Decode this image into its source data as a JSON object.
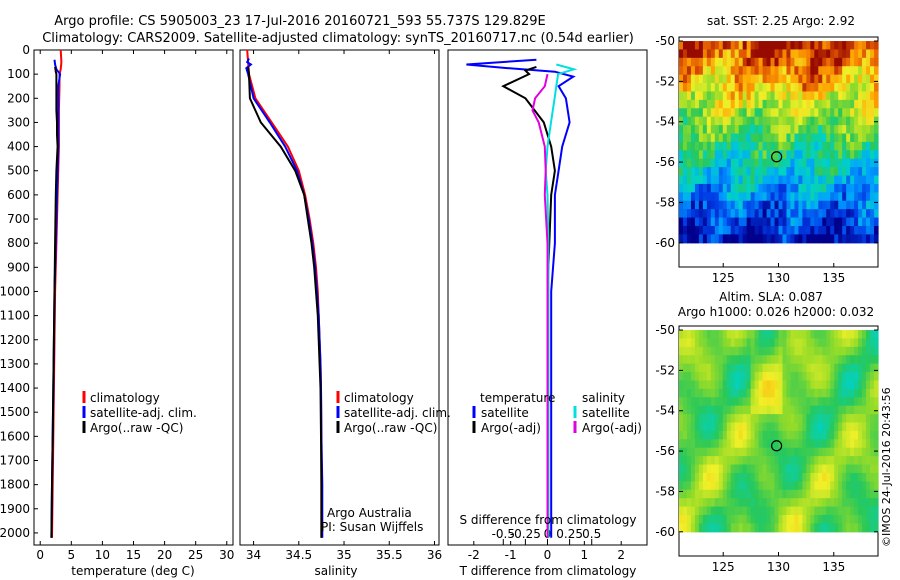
{
  "header": {
    "line1": "Argo profile: CS 5905003_23 17-Jul-2016 20160721_593 55.737S 129.829E",
    "line2": "Climatology: CARS2009. Satellite-adjusted climatology: synTS_20160717.nc (0.54d earlier)"
  },
  "credit": "Argo Australia",
  "pi": "PI: Susan Wijffels",
  "watermark": "©IMOS 24-Jul-2016 20:43:56",
  "colors": {
    "climatology": "#ff0000",
    "satellite": "#0000ff",
    "argo": "#000000",
    "salinity_satellite": "#00e0e0",
    "salinity_argo": "#e000e0"
  },
  "chart_data": [
    {
      "type": "line",
      "panel": "temperature",
      "xlabel": "temperature (deg C)",
      "ylim": [
        2050,
        0
      ],
      "xlim": [
        -1,
        31
      ],
      "xticks": [
        "0",
        "5",
        "10",
        "15",
        "20",
        "25",
        "30"
      ],
      "yticks": [
        "0",
        "100",
        "200",
        "300",
        "400",
        "500",
        "600",
        "700",
        "800",
        "900",
        "1000",
        "1100",
        "1200",
        "1300",
        "1400",
        "1500",
        "1600",
        "1700",
        "1800",
        "1900",
        "2000"
      ],
      "legend": [
        "climatology",
        "satellite-adj. clim.",
        "Argo(..raw -QC)"
      ],
      "series": [
        {
          "name": "climatology",
          "color": "#ff0000",
          "points": [
            [
              3.3,
              0
            ],
            [
              3.4,
              50
            ],
            [
              3.3,
              80
            ],
            [
              3.1,
              100
            ],
            [
              3.1,
              150
            ],
            [
              3.0,
              250
            ],
            [
              3.0,
              400
            ],
            [
              2.8,
              600
            ],
            [
              2.6,
              800
            ],
            [
              2.4,
              1000
            ],
            [
              2.3,
              1200
            ],
            [
              2.2,
              1400
            ],
            [
              2.1,
              1600
            ],
            [
              2.0,
              1800
            ],
            [
              1.9,
              2020
            ]
          ]
        },
        {
          "name": "satellite-adj. clim.",
          "color": "#0000ff",
          "points": [
            [
              2.3,
              40
            ],
            [
              2.4,
              60
            ],
            [
              2.6,
              80
            ],
            [
              3.2,
              100
            ],
            [
              2.9,
              150
            ],
            [
              2.9,
              250
            ],
            [
              2.9,
              400
            ],
            [
              2.7,
              600
            ],
            [
              2.5,
              800
            ],
            [
              2.3,
              1000
            ],
            [
              2.2,
              1200
            ],
            [
              2.1,
              1400
            ],
            [
              2.0,
              1600
            ],
            [
              1.9,
              1800
            ],
            [
              1.8,
              2020
            ]
          ]
        },
        {
          "name": "Argo(..raw -QC)",
          "color": "#000000",
          "points": [
            [
              2.4,
              70
            ],
            [
              2.5,
              90
            ],
            [
              2.6,
              100
            ],
            [
              2.6,
              150
            ],
            [
              2.6,
              200
            ],
            [
              2.6,
              250
            ],
            [
              2.7,
              300
            ],
            [
              2.7,
              350
            ],
            [
              2.8,
              400
            ],
            [
              2.6,
              500
            ],
            [
              2.5,
              600
            ],
            [
              2.4,
              800
            ],
            [
              2.3,
              1000
            ],
            [
              2.2,
              1200
            ],
            [
              2.1,
              1400
            ],
            [
              2.0,
              1600
            ],
            [
              1.9,
              1800
            ],
            [
              1.8,
              2020
            ]
          ]
        }
      ]
    },
    {
      "type": "line",
      "panel": "salinity",
      "xlabel": "salinity",
      "ylim": [
        2050,
        0
      ],
      "xlim": [
        33.85,
        36.05
      ],
      "xticks": [
        "34",
        "34.5",
        "35",
        "35.5",
        "36"
      ],
      "legend": [
        "climatology",
        "satellite-adj. clim.",
        "Argo(..raw -QC)"
      ],
      "series": [
        {
          "name": "climatology",
          "color": "#ff0000",
          "points": [
            [
              33.93,
              0
            ],
            [
              33.95,
              100
            ],
            [
              34.02,
              200
            ],
            [
              34.2,
              300
            ],
            [
              34.38,
              400
            ],
            [
              34.5,
              500
            ],
            [
              34.57,
              600
            ],
            [
              34.62,
              700
            ],
            [
              34.66,
              800
            ],
            [
              34.69,
              900
            ],
            [
              34.71,
              1000
            ],
            [
              34.72,
              1100
            ],
            [
              34.73,
              1200
            ],
            [
              34.74,
              1300
            ],
            [
              34.745,
              1400
            ],
            [
              34.75,
              1600
            ],
            [
              34.75,
              1800
            ],
            [
              34.75,
              2020
            ]
          ]
        },
        {
          "name": "satellite-adj. clim.",
          "color": "#0000ff",
          "points": [
            [
              33.95,
              35
            ],
            [
              33.93,
              50
            ],
            [
              33.97,
              60
            ],
            [
              33.92,
              75
            ],
            [
              33.94,
              100
            ],
            [
              34.0,
              200
            ],
            [
              34.18,
              300
            ],
            [
              34.35,
              400
            ],
            [
              34.48,
              500
            ],
            [
              34.56,
              600
            ],
            [
              34.61,
              700
            ],
            [
              34.65,
              800
            ],
            [
              34.68,
              900
            ],
            [
              34.7,
              1000
            ],
            [
              34.72,
              1100
            ],
            [
              34.73,
              1200
            ],
            [
              34.74,
              1300
            ],
            [
              34.745,
              1400
            ],
            [
              34.75,
              1600
            ],
            [
              34.76,
              1800
            ],
            [
              34.76,
              2020
            ]
          ]
        },
        {
          "name": "Argo(..raw -QC)",
          "color": "#000000",
          "points": [
            [
              33.94,
              70
            ],
            [
              33.95,
              100
            ],
            [
              33.96,
              200
            ],
            [
              34.08,
              300
            ],
            [
              34.3,
              400
            ],
            [
              34.46,
              500
            ],
            [
              34.56,
              600
            ],
            [
              34.6,
              700
            ],
            [
              34.64,
              800
            ],
            [
              34.67,
              900
            ],
            [
              34.69,
              1000
            ],
            [
              34.71,
              1100
            ],
            [
              34.72,
              1200
            ],
            [
              34.73,
              1300
            ],
            [
              34.74,
              1400
            ],
            [
              34.745,
              1600
            ],
            [
              34.75,
              1800
            ],
            [
              34.75,
              2020
            ]
          ]
        }
      ]
    },
    {
      "type": "line",
      "panel": "difference",
      "xlabel": "T difference from climatology",
      "xlabel2": "S difference from climatology",
      "ylim": [
        2050,
        0
      ],
      "xlim": [
        -2.7,
        2.7
      ],
      "xticks": [
        "-2",
        "-1",
        "0",
        "1",
        "2"
      ],
      "xticks2": [
        "-0.5",
        "-0.25",
        "0",
        "0.25",
        "0.5"
      ],
      "legend_title_t": "temperature",
      "legend_title_s": "salinity",
      "legend_t": [
        "satellite",
        "Argo(-adj)"
      ],
      "legend_s": [
        "satellite",
        "Argo(-adj)"
      ],
      "series": [
        {
          "name": "satellite",
          "group": "temperature",
          "color": "#0000ff",
          "points": [
            [
              -0.3,
              40
            ],
            [
              -2.2,
              60
            ],
            [
              -1.1,
              75
            ],
            [
              0.2,
              90
            ],
            [
              0.7,
              110
            ],
            [
              0.3,
              150
            ],
            [
              0.5,
              200
            ],
            [
              0.6,
              300
            ],
            [
              0.4,
              400
            ],
            [
              0.3,
              500
            ],
            [
              0.2,
              600
            ],
            [
              0.2,
              800
            ],
            [
              0.1,
              1000
            ],
            [
              0.1,
              1400
            ],
            [
              0.1,
              2020
            ]
          ]
        },
        {
          "name": "Argo(-adj)",
          "group": "temperature",
          "color": "#000000",
          "points": [
            [
              -0.3,
              70
            ],
            [
              -0.6,
              85
            ],
            [
              -0.5,
              100
            ],
            [
              -1.2,
              150
            ],
            [
              -0.6,
              200
            ],
            [
              -0.1,
              300
            ],
            [
              0.1,
              400
            ],
            [
              0.2,
              500
            ],
            [
              0.1,
              600
            ],
            [
              0.05,
              800
            ],
            [
              0.0,
              1000
            ],
            [
              0.0,
              1400
            ],
            [
              0.0,
              2020
            ]
          ]
        },
        {
          "name": "satellite",
          "group": "salinity",
          "color": "#00e0e0",
          "points": [
            [
              0.1,
              60
            ],
            [
              0.3,
              80
            ],
            [
              0.12,
              100
            ],
            [
              0.1,
              150
            ],
            [
              0.08,
              200
            ],
            [
              0.04,
              300
            ],
            [
              0.0,
              400
            ],
            [
              -0.02,
              500
            ],
            [
              0.0,
              600
            ],
            [
              0.01,
              800
            ],
            [
              0.01,
              1000
            ],
            [
              0.01,
              1400
            ],
            [
              0.01,
              2020
            ]
          ]
        },
        {
          "name": "Argo(-adj)",
          "group": "salinity",
          "color": "#e000e0",
          "points": [
            [
              0.0,
              100
            ],
            [
              -0.03,
              150
            ],
            [
              -0.14,
              200
            ],
            [
              -0.17,
              250
            ],
            [
              -0.1,
              300
            ],
            [
              -0.03,
              400
            ],
            [
              -0.02,
              500
            ],
            [
              -0.03,
              600
            ],
            [
              0.0,
              800
            ],
            [
              0.0,
              1000
            ],
            [
              0.0,
              1400
            ],
            [
              0.0,
              2020
            ]
          ]
        }
      ]
    },
    {
      "type": "heatmap",
      "panel": "sst_map",
      "title": "sat. SST: 2.25 Argo: 2.92",
      "xlim": [
        121,
        139
      ],
      "ylim": [
        -61.2,
        -49.8
      ],
      "xticks": [
        "125",
        "130",
        "135"
      ],
      "yticks": [
        "-50",
        "-52",
        "-54",
        "-56",
        "-58",
        "-60"
      ],
      "marker": {
        "lon": 129.829,
        "lat": -55.737
      }
    },
    {
      "type": "heatmap",
      "panel": "sla_map",
      "title": "Altim. SLA: 0.087",
      "subtitle": "Argo h1000: 0.026 h2000: 0.032",
      "xlim": [
        121,
        139
      ],
      "ylim": [
        -61.2,
        -49.8
      ],
      "xticks": [
        "125",
        "130",
        "135"
      ],
      "yticks": [
        "-50",
        "-52",
        "-54",
        "-56",
        "-58",
        "-60"
      ],
      "marker": {
        "lon": 129.829,
        "lat": -55.737
      }
    }
  ]
}
